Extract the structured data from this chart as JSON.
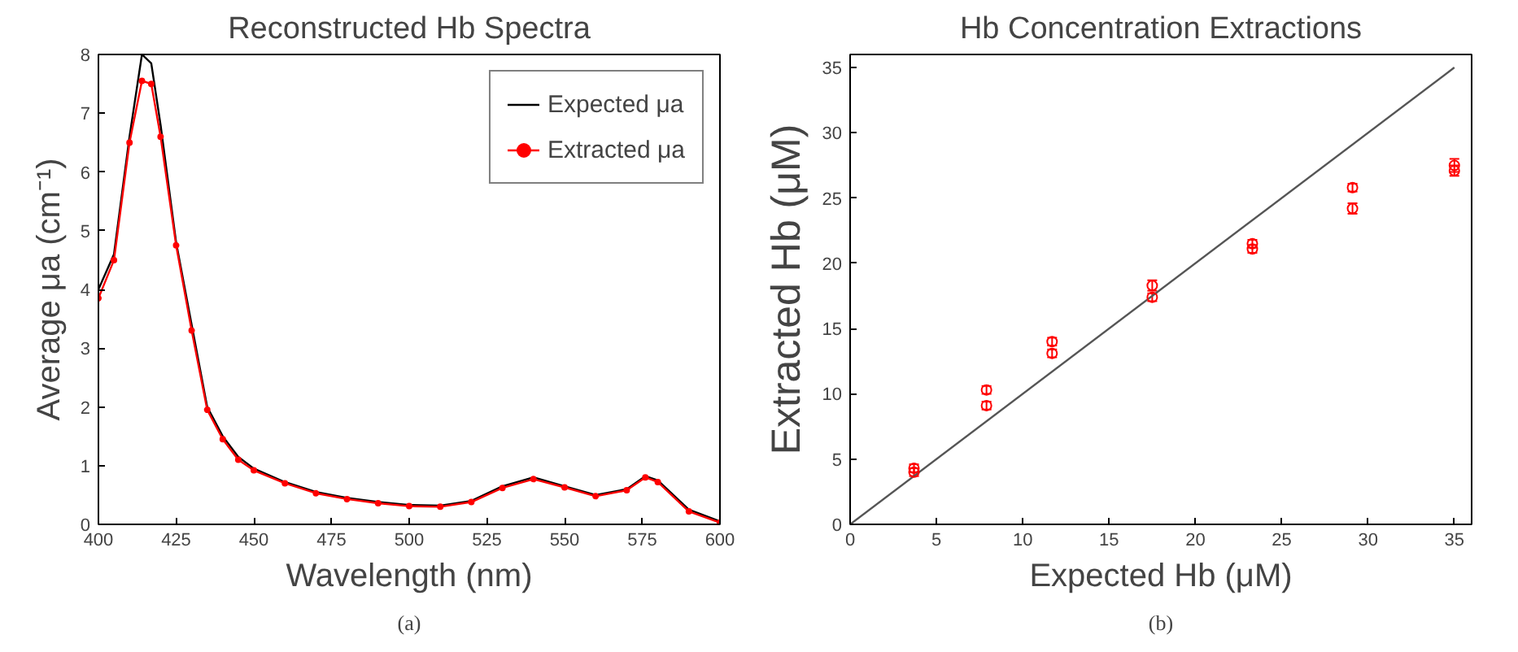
{
  "chart_data": [
    {
      "type": "line",
      "title": "Reconstructed Hb Spectra",
      "xlabel": "Wavelength (nm)",
      "ylabel": "Average μa (cm⁻¹)",
      "annotations": [
        "(a)"
      ],
      "xlim": [
        400,
        600
      ],
      "xticks": [
        400,
        425,
        450,
        475,
        500,
        525,
        550,
        575,
        600
      ],
      "ylim": [
        0,
        8
      ],
      "yticks": [
        0,
        1,
        2,
        3,
        4,
        5,
        6,
        7,
        8
      ],
      "legend": "top right",
      "grid": false,
      "series": [
        {
          "name": "Expected μa",
          "color": "#000000",
          "marker": "none",
          "x": [
            400,
            405,
            410,
            414,
            417,
            420,
            425,
            430,
            435,
            440,
            445,
            450,
            460,
            470,
            480,
            490,
            500,
            510,
            520,
            530,
            540,
            550,
            560,
            570,
            576,
            580,
            590,
            600
          ],
          "values": [
            4.0,
            4.6,
            6.6,
            8.0,
            7.85,
            6.8,
            4.8,
            3.4,
            2.0,
            1.5,
            1.15,
            0.95,
            0.72,
            0.55,
            0.45,
            0.38,
            0.33,
            0.32,
            0.4,
            0.65,
            0.8,
            0.65,
            0.5,
            0.6,
            0.82,
            0.75,
            0.25,
            0.05
          ]
        },
        {
          "name": "Extracted μa",
          "color": "#ff0000",
          "marker": "circle",
          "x": [
            400,
            405,
            410,
            414,
            417,
            420,
            425,
            430,
            435,
            440,
            445,
            450,
            460,
            470,
            480,
            490,
            500,
            510,
            520,
            530,
            540,
            550,
            560,
            570,
            576,
            580,
            590,
            600
          ],
          "values": [
            3.85,
            4.5,
            6.5,
            7.55,
            7.5,
            6.6,
            4.75,
            3.3,
            1.95,
            1.45,
            1.1,
            0.92,
            0.7,
            0.53,
            0.43,
            0.36,
            0.31,
            0.3,
            0.38,
            0.62,
            0.77,
            0.63,
            0.48,
            0.58,
            0.8,
            0.72,
            0.22,
            0.03
          ]
        }
      ]
    },
    {
      "type": "scatter",
      "title": "Hb Concentration Extractions",
      "xlabel": "Expected Hb (μM)",
      "ylabel": "Extracted Hb (μM)",
      "annotations": [
        "(b)"
      ],
      "xlim": [
        0,
        36
      ],
      "xticks": [
        0,
        5,
        10,
        15,
        20,
        25,
        30,
        35
      ],
      "ylim": [
        0,
        36
      ],
      "yticks": [
        0,
        5,
        10,
        15,
        20,
        25,
        30,
        35
      ],
      "legend": false,
      "grid": false,
      "series": [
        {
          "type": "line",
          "color": "#555555",
          "marker": "none",
          "x": [
            0,
            35
          ],
          "values": [
            0,
            35
          ]
        },
        {
          "type": "scatter",
          "color": "#ff0000",
          "marker": "circle",
          "x": [
            3.7,
            3.7,
            7.9,
            7.9,
            11.7,
            11.7,
            17.5,
            17.5,
            23.3,
            23.3,
            29.1,
            29.1,
            35,
            35
          ],
          "values": [
            4.3,
            4.0,
            10.3,
            9.1,
            14.0,
            13.1,
            18.3,
            17.4,
            21.5,
            21.1,
            25.8,
            24.2,
            27.5,
            27.1
          ],
          "errors": [
            0.3,
            0.3,
            0.3,
            0.3,
            0.3,
            0.3,
            0.4,
            0.3,
            0.3,
            0.3,
            0.3,
            0.4,
            0.5,
            0.4
          ]
        }
      ]
    }
  ]
}
